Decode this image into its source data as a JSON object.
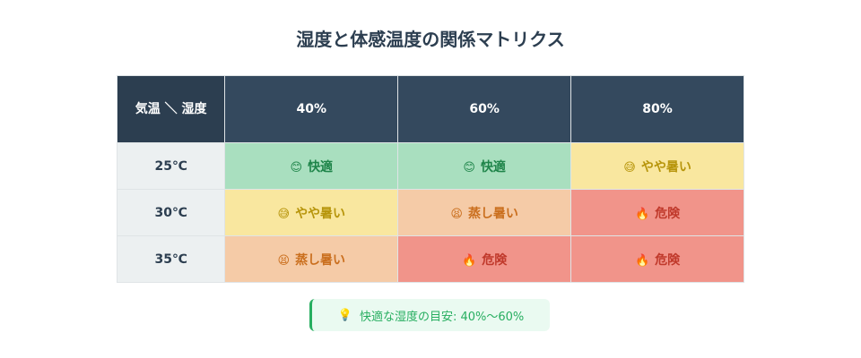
{
  "header": {
    "title": "湿度と体感温度の関係マトリクス"
  },
  "table": {
    "corner": "気温 ＼ 湿度",
    "columns": [
      "40%",
      "60%",
      "80%"
    ],
    "rows": [
      {
        "label": "25℃",
        "cells": [
          {
            "icon": "😊",
            "text": "快適"
          },
          {
            "icon": "😊",
            "text": "快適"
          },
          {
            "icon": "😅",
            "text": "やや暑い"
          }
        ]
      },
      {
        "label": "30℃",
        "cells": [
          {
            "icon": "😅",
            "text": "やや暑い"
          },
          {
            "icon": "😫",
            "text": "蒸し暑い"
          },
          {
            "icon": "🔥",
            "text": "危険"
          }
        ]
      },
      {
        "label": "35℃",
        "cells": [
          {
            "icon": "😫",
            "text": "蒸し暑い"
          },
          {
            "icon": "🔥",
            "text": "危険"
          },
          {
            "icon": "🔥",
            "text": "危険"
          }
        ]
      }
    ]
  },
  "note": {
    "icon": "💡",
    "text": "快適な湿度の目安: 40%〜60%"
  }
}
